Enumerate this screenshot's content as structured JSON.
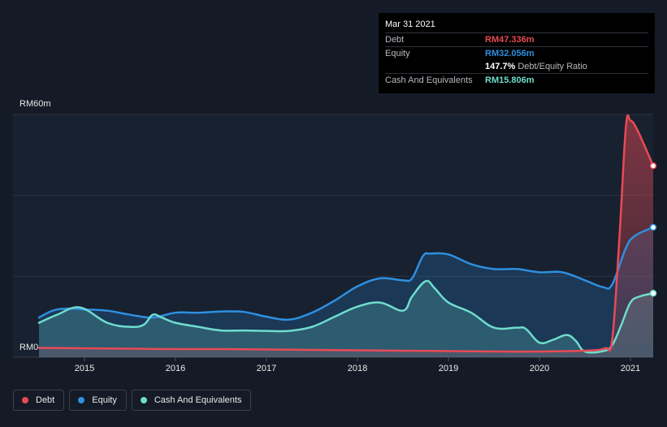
{
  "tooltip": {
    "date": "Mar 31 2021",
    "debt_label": "Debt",
    "debt_value": "RM47.336m",
    "equity_label": "Equity",
    "equity_value": "RM32.056m",
    "ratio_value": "147.7%",
    "ratio_label": "Debt/Equity Ratio",
    "cash_label": "Cash And Equivalents",
    "cash_value": "RM15.806m"
  },
  "legend": [
    {
      "label": "Debt",
      "color": "#e84a55"
    },
    {
      "label": "Equity",
      "color": "#2e8fe0"
    },
    {
      "label": "Cash And Equivalents",
      "color": "#6fdccd"
    }
  ],
  "chart_data": {
    "type": "area",
    "y_tick_labels": [
      "RM60m",
      "RM0"
    ],
    "ylim": [
      0,
      60
    ],
    "xlim": [
      2014.5,
      2021.25
    ],
    "x_ticks": [
      2015,
      2016,
      2017,
      2018,
      2019,
      2020,
      2021
    ],
    "x_tick_labels": [
      "2015",
      "2016",
      "2017",
      "2018",
      "2019",
      "2020",
      "2021"
    ],
    "grid": true,
    "legend_position": "bottom-left",
    "series": [
      {
        "name": "Debt",
        "color": "#e84a55",
        "points": [
          [
            2014.5,
            2.3
          ],
          [
            2015.0,
            2.2
          ],
          [
            2015.5,
            2.1
          ],
          [
            2016.0,
            2.0
          ],
          [
            2016.5,
            2.0
          ],
          [
            2017.0,
            1.9
          ],
          [
            2017.5,
            1.8
          ],
          [
            2018.0,
            1.7
          ],
          [
            2018.5,
            1.6
          ],
          [
            2019.0,
            1.5
          ],
          [
            2019.5,
            1.4
          ],
          [
            2020.0,
            1.4
          ],
          [
            2020.5,
            1.6
          ],
          [
            2020.72,
            2.2
          ],
          [
            2020.8,
            4.5
          ],
          [
            2020.88,
            30.0
          ],
          [
            2020.95,
            57.0
          ],
          [
            2021.0,
            58.5
          ],
          [
            2021.08,
            56.0
          ],
          [
            2021.25,
            47.3
          ]
        ]
      },
      {
        "name": "Equity",
        "color": "#2e8fe0",
        "points": [
          [
            2014.5,
            9.8
          ],
          [
            2014.65,
            11.5
          ],
          [
            2014.8,
            12.0
          ],
          [
            2015.0,
            11.8
          ],
          [
            2015.25,
            11.5
          ],
          [
            2015.5,
            10.5
          ],
          [
            2015.75,
            9.8
          ],
          [
            2016.0,
            11.0
          ],
          [
            2016.25,
            11.0
          ],
          [
            2016.5,
            11.3
          ],
          [
            2016.75,
            11.2
          ],
          [
            2017.0,
            10.0
          ],
          [
            2017.25,
            9.3
          ],
          [
            2017.5,
            11.0
          ],
          [
            2017.75,
            14.0
          ],
          [
            2018.0,
            17.5
          ],
          [
            2018.25,
            19.5
          ],
          [
            2018.5,
            19.0
          ],
          [
            2018.6,
            19.5
          ],
          [
            2018.72,
            25.0
          ],
          [
            2018.8,
            25.6
          ],
          [
            2019.0,
            25.4
          ],
          [
            2019.25,
            23.0
          ],
          [
            2019.5,
            21.8
          ],
          [
            2019.75,
            21.8
          ],
          [
            2020.0,
            21.0
          ],
          [
            2020.25,
            21.0
          ],
          [
            2020.5,
            19.0
          ],
          [
            2020.7,
            17.3
          ],
          [
            2020.8,
            18.0
          ],
          [
            2020.95,
            27.0
          ],
          [
            2021.05,
            30.0
          ],
          [
            2021.25,
            32.1
          ]
        ]
      },
      {
        "name": "Cash And Equivalents",
        "color": "#6fdccd",
        "points": [
          [
            2014.5,
            8.5
          ],
          [
            2014.7,
            10.5
          ],
          [
            2014.95,
            12.3
          ],
          [
            2015.25,
            8.5
          ],
          [
            2015.5,
            7.5
          ],
          [
            2015.65,
            8.0
          ],
          [
            2015.75,
            10.5
          ],
          [
            2015.85,
            9.8
          ],
          [
            2016.0,
            8.5
          ],
          [
            2016.25,
            7.5
          ],
          [
            2016.5,
            6.6
          ],
          [
            2016.75,
            6.6
          ],
          [
            2017.0,
            6.5
          ],
          [
            2017.25,
            6.5
          ],
          [
            2017.5,
            7.5
          ],
          [
            2017.75,
            10.0
          ],
          [
            2018.0,
            12.5
          ],
          [
            2018.25,
            13.5
          ],
          [
            2018.5,
            11.5
          ],
          [
            2018.6,
            15.0
          ],
          [
            2018.75,
            18.8
          ],
          [
            2018.85,
            17.0
          ],
          [
            2019.0,
            13.5
          ],
          [
            2019.25,
            11.0
          ],
          [
            2019.5,
            7.3
          ],
          [
            2019.75,
            7.3
          ],
          [
            2019.85,
            7.0
          ],
          [
            2020.0,
            3.6
          ],
          [
            2020.15,
            4.3
          ],
          [
            2020.3,
            5.5
          ],
          [
            2020.4,
            4.0
          ],
          [
            2020.5,
            1.4
          ],
          [
            2020.7,
            1.5
          ],
          [
            2020.8,
            3.0
          ],
          [
            2020.9,
            8.0
          ],
          [
            2021.0,
            13.5
          ],
          [
            2021.1,
            15.0
          ],
          [
            2021.25,
            15.8
          ]
        ]
      }
    ]
  }
}
